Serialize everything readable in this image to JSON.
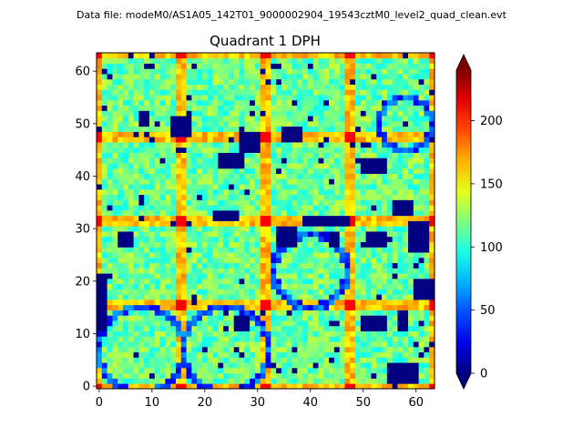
{
  "suptitle": "Data file: modeM0/AS1A05_142T01_9000002904_19543cztM0_level2_quad_clean.evt",
  "chart_data": {
    "type": "heatmap",
    "title": "Quadrant 1 DPH",
    "xlabel": "",
    "ylabel": "",
    "grid_size": 64,
    "xlim": [
      -0.5,
      63.5
    ],
    "ylim": [
      -0.5,
      63.5
    ],
    "x_ticks": [
      0,
      10,
      20,
      30,
      40,
      50,
      60
    ],
    "y_ticks": [
      0,
      10,
      20,
      30,
      40,
      50,
      60
    ],
    "colorbar": {
      "colormap": "jet",
      "vmin": 0,
      "vmax": 240,
      "ticks": [
        0,
        50,
        100,
        150,
        200
      ],
      "extend": "both"
    },
    "typical_value": 115,
    "module_size": 16,
    "edge_value": 165,
    "corner_value": 210,
    "low_value": 0,
    "low_regions": [
      {
        "x": [
          14,
          17
        ],
        "y": [
          48,
          51
        ]
      },
      {
        "x": [
          8,
          9
        ],
        "y": [
          50,
          52
        ]
      },
      {
        "x": [
          34,
          37
        ],
        "y": [
          27,
          30
        ]
      },
      {
        "x": [
          44,
          45
        ],
        "y": [
          27,
          29
        ]
      },
      {
        "x": [
          51,
          54
        ],
        "y": [
          27,
          29
        ]
      },
      {
        "x": [
          50,
          54
        ],
        "y": [
          41,
          43
        ]
      },
      {
        "x": [
          23,
          27
        ],
        "y": [
          42,
          44
        ]
      },
      {
        "x": [
          27,
          30
        ],
        "y": [
          45,
          48
        ]
      },
      {
        "x": [
          22,
          26
        ],
        "y": [
          32,
          33
        ]
      },
      {
        "x": [
          39,
          47
        ],
        "y": [
          31,
          32
        ]
      },
      {
        "x": [
          56,
          59
        ],
        "y": [
          33,
          35
        ]
      },
      {
        "x": [
          59,
          62
        ],
        "y": [
          26,
          31
        ]
      },
      {
        "x": [
          55,
          60
        ],
        "y": [
          1,
          4
        ]
      },
      {
        "x": [
          50,
          54
        ],
        "y": [
          11,
          13
        ]
      },
      {
        "x": [
          57,
          58
        ],
        "y": [
          11,
          14
        ]
      },
      {
        "x": [
          0,
          1
        ],
        "y": [
          11,
          21
        ]
      },
      {
        "x": [
          60,
          63
        ],
        "y": [
          17,
          20
        ]
      },
      {
        "x": [
          26,
          28
        ],
        "y": [
          11,
          13
        ]
      },
      {
        "x": [
          35,
          38
        ],
        "y": [
          47,
          49
        ]
      },
      {
        "x": [
          4,
          6
        ],
        "y": [
          27,
          29
        ]
      }
    ],
    "blue_arcs": [
      {
        "cx": 8,
        "cy": 7,
        "r": 8
      },
      {
        "cx": 24,
        "cy": 7,
        "r": 8
      },
      {
        "cx": 40,
        "cy": 22,
        "r": 7
      },
      {
        "cx": 58,
        "cy": 50,
        "r": 5
      }
    ],
    "seed": 19543
  }
}
